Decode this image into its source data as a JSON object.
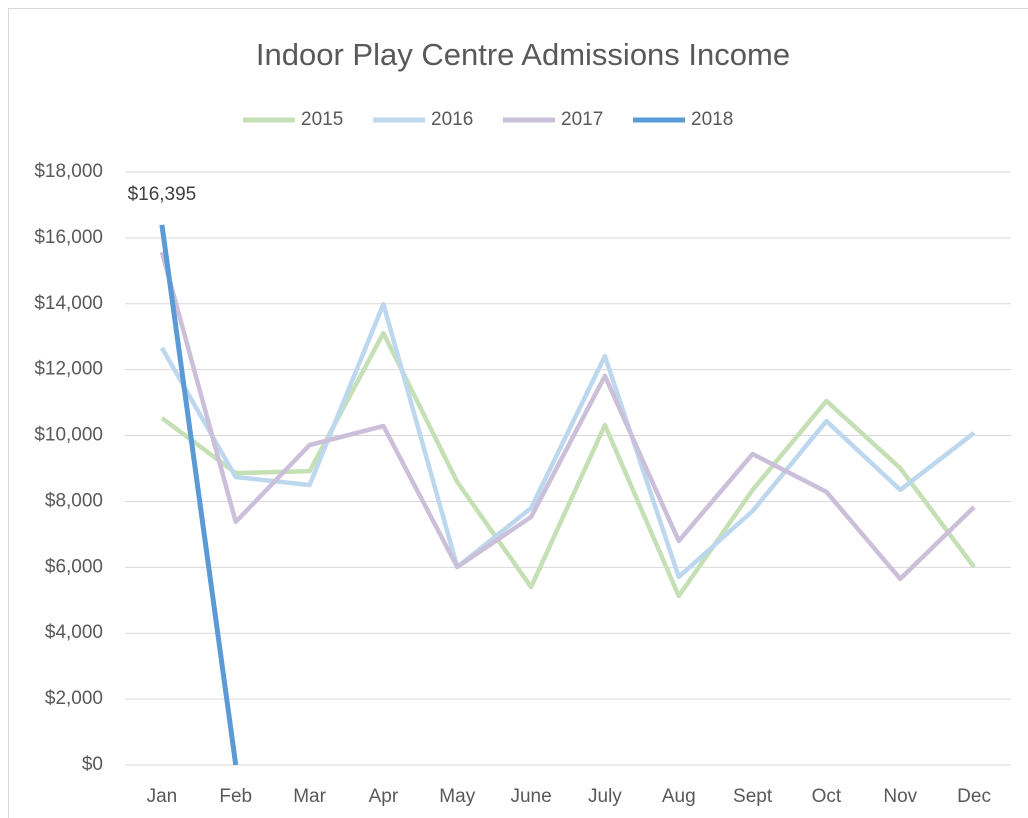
{
  "chart_data": {
    "type": "line",
    "title": "Indoor Play Centre Admissions Income",
    "categories": [
      "Jan",
      "Feb",
      "Mar",
      "Apr",
      "May",
      "June",
      "July",
      "Aug",
      "Sept",
      "Oct",
      "Nov",
      "Dec"
    ],
    "series": [
      {
        "name": "2015",
        "color": "#c5e0b4",
        "values": [
          10530,
          8860,
          8920,
          13110,
          8590,
          5400,
          10320,
          5130,
          8350,
          11050,
          9010,
          6010
        ]
      },
      {
        "name": "2016",
        "color": "#bdd7ee",
        "values": [
          12660,
          8740,
          8500,
          13990,
          6010,
          7800,
          12410,
          5710,
          7710,
          10440,
          8350,
          10080
        ]
      },
      {
        "name": "2017",
        "color": "#cbbfda",
        "values": [
          15570,
          7380,
          9710,
          10290,
          6010,
          7530,
          11810,
          6800,
          9440,
          8290,
          5650,
          7830
        ]
      },
      {
        "name": "2018",
        "color": "#5b9bd5",
        "values": [
          16395,
          0,
          null,
          null,
          null,
          null,
          null,
          null,
          null,
          null,
          null,
          null
        ],
        "value_labels": [
          "$16,395",
          null,
          null,
          null,
          null,
          null,
          null,
          null,
          null,
          null,
          null,
          null
        ]
      }
    ],
    "ylim": [
      0,
      18000
    ],
    "yticks": [
      {
        "value": 0,
        "label": "$0"
      },
      {
        "value": 2000,
        "label": "$2,000"
      },
      {
        "value": 4000,
        "label": "$4,000"
      },
      {
        "value": 6000,
        "label": "$6,000"
      },
      {
        "value": 8000,
        "label": "$8,000"
      },
      {
        "value": 10000,
        "label": "$10,000"
      },
      {
        "value": 12000,
        "label": "$12,000"
      },
      {
        "value": 14000,
        "label": "$14,000"
      },
      {
        "value": 16000,
        "label": "$16,000"
      },
      {
        "value": 18000,
        "label": "$18,000"
      }
    ],
    "grid": true,
    "legend": "top"
  }
}
